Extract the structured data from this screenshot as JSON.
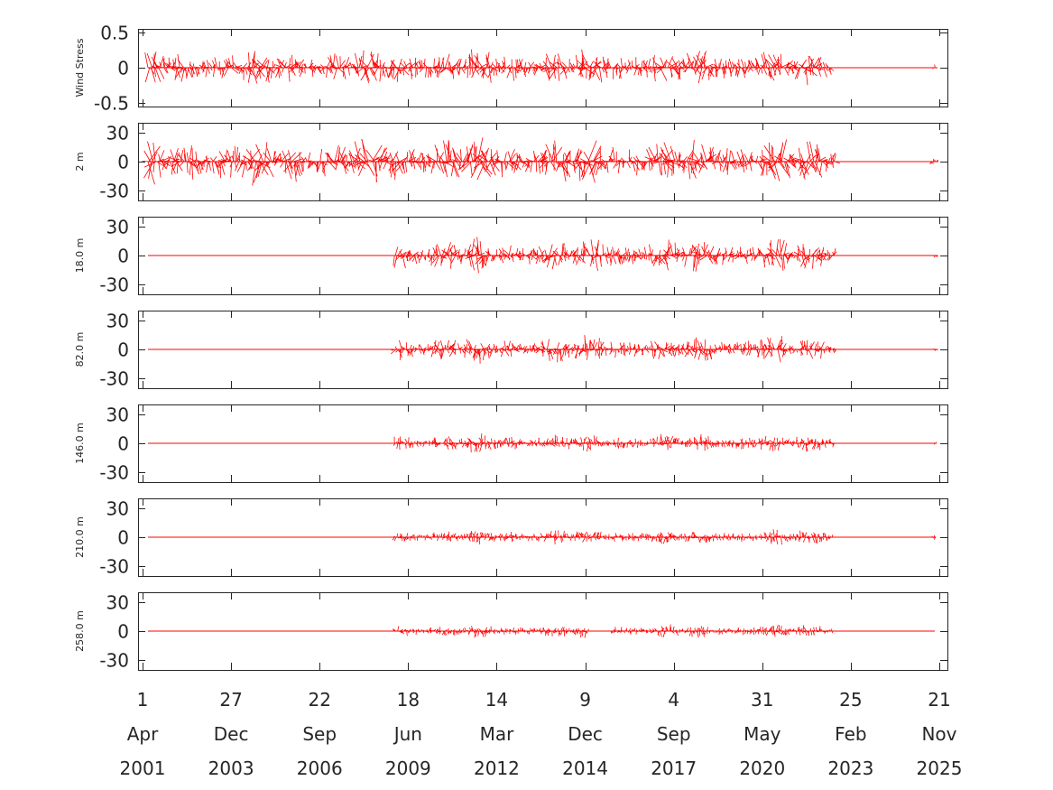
{
  "chart_data": {
    "type": "line",
    "description_style": "stick vector time series, 7 stacked panels sharing a date axis",
    "x_axis": {
      "start": "2001-04-01",
      "end": "2025-11-21",
      "ticks": [
        {
          "date": "2001-04-01",
          "day": "1",
          "month": "Apr",
          "year": "2001"
        },
        {
          "date": "2003-12-27",
          "day": "27",
          "month": "Dec",
          "year": "2003"
        },
        {
          "date": "2006-09-22",
          "day": "22",
          "month": "Sep",
          "year": "2006"
        },
        {
          "date": "2009-06-18",
          "day": "18",
          "month": "Jun",
          "year": "2009"
        },
        {
          "date": "2012-03-14",
          "day": "14",
          "month": "Mar",
          "year": "2012"
        },
        {
          "date": "2014-12-09",
          "day": "9",
          "month": "Dec",
          "year": "2014"
        },
        {
          "date": "2017-09-04",
          "day": "4",
          "month": "Sep",
          "year": "2017"
        },
        {
          "date": "2020-05-31",
          "day": "31",
          "month": "May",
          "year": "2020"
        },
        {
          "date": "2023-02-25",
          "day": "25",
          "month": "Feb",
          "year": "2023"
        },
        {
          "date": "2025-11-21",
          "day": "21",
          "month": "Nov",
          "year": "2025"
        }
      ]
    },
    "color": "#ff0000",
    "grid": false,
    "panels": [
      {
        "label": "Wind Stress",
        "ylim": [
          -0.55,
          0.55
        ],
        "yticks": [
          -0.5,
          0,
          0.5
        ],
        "ytick_labels": [
          "-0.5",
          "0",
          "0.5"
        ],
        "baseline": {
          "start": "2001-06-01",
          "end": "2025-11-01"
        },
        "segments": [
          {
            "start": "2001-06-01",
            "end": "2022-08-01",
            "amplitude": 0.3
          },
          {
            "start": "2025-09-25",
            "end": "2025-10-10",
            "amplitude": 0.1
          }
        ]
      },
      {
        "label": "2 m",
        "ylim": [
          -40,
          40
        ],
        "yticks": [
          -30,
          0,
          30
        ],
        "ytick_labels": [
          "-30",
          "0",
          "30"
        ],
        "baseline": {
          "start": "2001-06-01",
          "end": "2025-11-10"
        },
        "segments": [
          {
            "start": "2001-06-01",
            "end": "2022-09-01",
            "amplitude": 28
          },
          {
            "start": "2025-08-20",
            "end": "2025-11-10",
            "amplitude": 6
          }
        ]
      },
      {
        "label": "18.0 m",
        "ylim": [
          -40,
          40
        ],
        "yticks": [
          -30,
          0,
          30
        ],
        "ytick_labels": [
          "-30",
          "0",
          "30"
        ],
        "baseline": {
          "start": "2001-06-01",
          "end": "2025-11-01"
        },
        "segments": [
          {
            "start": "2009-01-15",
            "end": "2022-09-01",
            "amplitude": 20
          },
          {
            "start": "2025-09-25",
            "end": "2025-11-01",
            "amplitude": 5
          }
        ]
      },
      {
        "label": "82.0 m",
        "ylim": [
          -40,
          40
        ],
        "yticks": [
          -30,
          0,
          30
        ],
        "ytick_labels": [
          "-30",
          "0",
          "30"
        ],
        "baseline": {
          "start": "2001-06-01",
          "end": "2025-11-01"
        },
        "segments": [
          {
            "start": "2009-01-15",
            "end": "2022-09-01",
            "amplitude": 16
          },
          {
            "start": "2025-09-25",
            "end": "2025-11-01",
            "amplitude": 4
          }
        ]
      },
      {
        "label": "146.0 m",
        "ylim": [
          -40,
          40
        ],
        "yticks": [
          -30,
          0,
          30
        ],
        "ytick_labels": [
          "-30",
          "0",
          "30"
        ],
        "baseline": {
          "start": "2001-06-01",
          "end": "2025-10-20"
        },
        "segments": [
          {
            "start": "2009-01-15",
            "end": "2022-09-01",
            "amplitude": 11
          },
          {
            "start": "2025-09-25",
            "end": "2025-10-20",
            "amplitude": 4
          }
        ]
      },
      {
        "label": "210.0 m",
        "ylim": [
          -40,
          40
        ],
        "yticks": [
          -30,
          0,
          30
        ],
        "ytick_labels": [
          "-30",
          "0",
          "30"
        ],
        "baseline": {
          "start": "2001-06-01",
          "end": "2025-10-15"
        },
        "segments": [
          {
            "start": "2009-01-15",
            "end": "2022-08-01",
            "amplitude": 9
          },
          {
            "start": "2025-09-01",
            "end": "2025-10-15",
            "amplitude": 5
          }
        ]
      },
      {
        "label": "258.0 m",
        "ylim": [
          -40,
          40
        ],
        "yticks": [
          -30,
          0,
          30
        ],
        "ytick_labels": [
          "-30",
          "0",
          "30"
        ],
        "baseline": {
          "start": "2001-06-01",
          "end": "2025-10-01"
        },
        "segments": [
          {
            "start": "2009-01-15",
            "end": "2015-01-15",
            "amplitude": 8
          },
          {
            "start": "2015-10-01",
            "end": "2022-08-01",
            "amplitude": 8
          }
        ]
      }
    ]
  }
}
